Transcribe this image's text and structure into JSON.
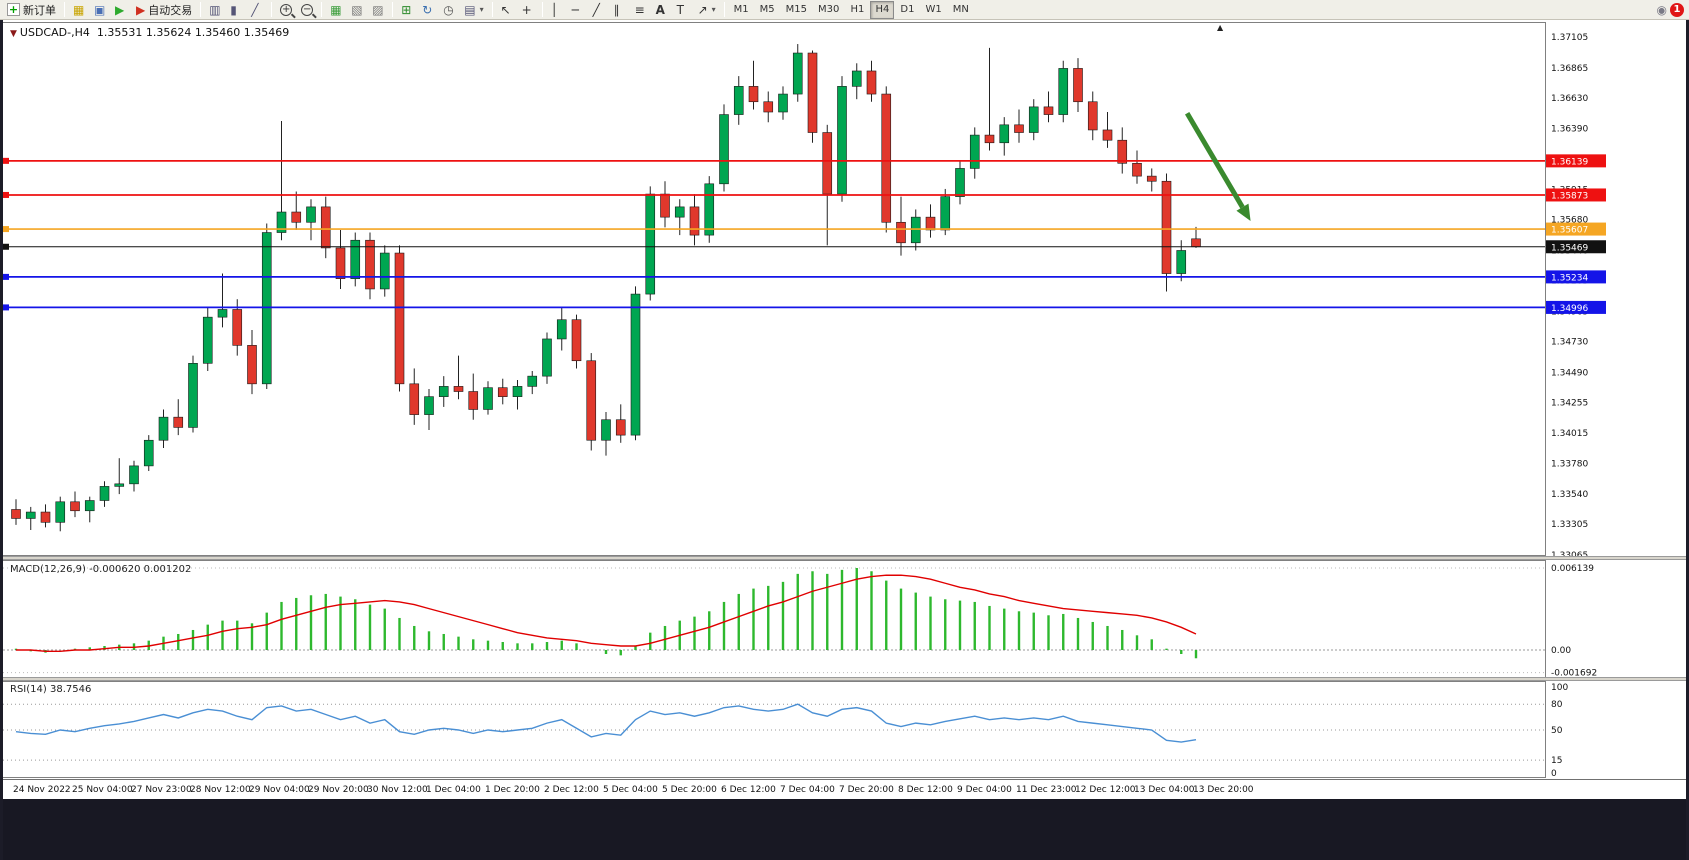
{
  "toolbar": {
    "new_order_label": "新订单",
    "auto_trading_label": "自动交易",
    "timeframes": [
      "M1",
      "M5",
      "M15",
      "M30",
      "H1",
      "H4",
      "D1",
      "W1",
      "MN"
    ],
    "active_timeframe": "H4",
    "notification_badge": "1"
  },
  "header": {
    "symbol": "USDCAD-,H4",
    "ohlc": "1.35531 1.35624 1.35460 1.35469"
  },
  "chart_data": {
    "type": "candlestick",
    "symbol": "USDCAD",
    "timeframe": "H4",
    "quote_open": "1.35531",
    "quote_high": "1.35624",
    "quote_low": "1.35460",
    "quote_close": "1.35469",
    "price_max": 1.37105,
    "price_min": 1.33065,
    "price_axis_labels": [
      "1.37105",
      "1.36865",
      "1.36630",
      "1.36390",
      "1.36155",
      "1.35915",
      "1.35680",
      "1.35440",
      "1.35205",
      "1.34965",
      "1.34730",
      "1.34490",
      "1.34255",
      "1.34015",
      "1.33780",
      "1.33540",
      "1.33305",
      "1.33065"
    ],
    "time_labels": [
      "24 Nov 2022",
      "25 Nov 04:00",
      "27 Nov 23:00",
      "28 Nov 12:00",
      "29 Nov 04:00",
      "29 Nov 20:00",
      "30 Nov 12:00",
      "1 Dec 04:00",
      "1 Dec 20:00",
      "2 Dec 12:00",
      "5 Dec 04:00",
      "5 Dec 20:00",
      "6 Dec 12:00",
      "7 Dec 04:00",
      "7 Dec 20:00",
      "8 Dec 12:00",
      "9 Dec 04:00",
      "11 Dec 23:00",
      "12 Dec 12:00",
      "13 Dec 04:00",
      "13 Dec 20:00"
    ],
    "bull_color": "#00A651",
    "bear_color": "#E0382C",
    "candles": [
      [
        1.3342,
        1.335,
        1.333,
        1.3335
      ],
      [
        1.3335,
        1.3344,
        1.3326,
        1.334
      ],
      [
        1.334,
        1.3346,
        1.3328,
        1.3332
      ],
      [
        1.3332,
        1.3352,
        1.3325,
        1.3348
      ],
      [
        1.3348,
        1.3356,
        1.3336,
        1.3341
      ],
      [
        1.3341,
        1.3352,
        1.3332,
        1.3349
      ],
      [
        1.3349,
        1.3364,
        1.3344,
        1.336
      ],
      [
        1.336,
        1.3382,
        1.3354,
        1.3362
      ],
      [
        1.3362,
        1.338,
        1.3356,
        1.3376
      ],
      [
        1.3376,
        1.34,
        1.3372,
        1.3396
      ],
      [
        1.3396,
        1.342,
        1.339,
        1.3414
      ],
      [
        1.3414,
        1.3428,
        1.34,
        1.3406
      ],
      [
        1.3406,
        1.3462,
        1.3402,
        1.3456
      ],
      [
        1.3456,
        1.35,
        1.345,
        1.3492
      ],
      [
        1.3492,
        1.3526,
        1.3484,
        1.3498
      ],
      [
        1.3498,
        1.3506,
        1.3462,
        1.347
      ],
      [
        1.347,
        1.3482,
        1.3432,
        1.344
      ],
      [
        1.344,
        1.3565,
        1.3436,
        1.3558
      ],
      [
        1.3558,
        1.3645,
        1.3552,
        1.3574
      ],
      [
        1.3574,
        1.359,
        1.356,
        1.3566
      ],
      [
        1.3566,
        1.3584,
        1.3552,
        1.3578
      ],
      [
        1.3578,
        1.3586,
        1.3538,
        1.3546
      ],
      [
        1.3546,
        1.356,
        1.3514,
        1.3522
      ],
      [
        1.3522,
        1.3558,
        1.3516,
        1.3552
      ],
      [
        1.3552,
        1.3558,
        1.3506,
        1.3514
      ],
      [
        1.3514,
        1.3548,
        1.3508,
        1.3542
      ],
      [
        1.3542,
        1.3548,
        1.3434,
        1.344
      ],
      [
        1.344,
        1.3452,
        1.3408,
        1.3416
      ],
      [
        1.3416,
        1.3436,
        1.3404,
        1.343
      ],
      [
        1.343,
        1.3446,
        1.3422,
        1.3438
      ],
      [
        1.3438,
        1.3462,
        1.3428,
        1.3434
      ],
      [
        1.3434,
        1.3448,
        1.3412,
        1.342
      ],
      [
        1.342,
        1.3442,
        1.3416,
        1.3437
      ],
      [
        1.3437,
        1.3444,
        1.3424,
        1.343
      ],
      [
        1.343,
        1.3443,
        1.342,
        1.3438
      ],
      [
        1.3438,
        1.345,
        1.3432,
        1.3446
      ],
      [
        1.3446,
        1.348,
        1.344,
        1.3475
      ],
      [
        1.3475,
        1.35,
        1.3466,
        1.349
      ],
      [
        1.349,
        1.3494,
        1.3452,
        1.3458
      ],
      [
        1.3458,
        1.3464,
        1.3388,
        1.3396
      ],
      [
        1.3396,
        1.3418,
        1.3384,
        1.3412
      ],
      [
        1.3412,
        1.3424,
        1.3394,
        1.34
      ],
      [
        1.34,
        1.3516,
        1.3396,
        1.351
      ],
      [
        1.351,
        1.3594,
        1.3505,
        1.3588
      ],
      [
        1.3588,
        1.3598,
        1.3562,
        1.357
      ],
      [
        1.357,
        1.3584,
        1.3556,
        1.3578
      ],
      [
        1.3578,
        1.3588,
        1.3548,
        1.3556
      ],
      [
        1.3556,
        1.3602,
        1.355,
        1.3596
      ],
      [
        1.3596,
        1.3658,
        1.359,
        1.365
      ],
      [
        1.365,
        1.368,
        1.3642,
        1.3672
      ],
      [
        1.3672,
        1.3692,
        1.3654,
        1.366
      ],
      [
        1.366,
        1.3668,
        1.3644,
        1.3652
      ],
      [
        1.3652,
        1.3672,
        1.3646,
        1.3666
      ],
      [
        1.3666,
        1.3705,
        1.366,
        1.3698
      ],
      [
        1.3698,
        1.37,
        1.3628,
        1.3636
      ],
      [
        1.3636,
        1.3642,
        1.3548,
        1.3588
      ],
      [
        1.3588,
        1.368,
        1.3582,
        1.3672
      ],
      [
        1.3672,
        1.369,
        1.3662,
        1.3684
      ],
      [
        1.3684,
        1.3692,
        1.366,
        1.3666
      ],
      [
        1.3666,
        1.3672,
        1.3558,
        1.3566
      ],
      [
        1.3566,
        1.3586,
        1.354,
        1.355
      ],
      [
        1.355,
        1.3576,
        1.3544,
        1.357
      ],
      [
        1.357,
        1.358,
        1.3554,
        1.356
      ],
      [
        1.356,
        1.3592,
        1.3556,
        1.3586
      ],
      [
        1.3586,
        1.3614,
        1.358,
        1.3608
      ],
      [
        1.3608,
        1.364,
        1.36,
        1.3634
      ],
      [
        1.3634,
        1.3702,
        1.3622,
        1.3628
      ],
      [
        1.3628,
        1.3648,
        1.3618,
        1.3642
      ],
      [
        1.3642,
        1.3654,
        1.3628,
        1.3636
      ],
      [
        1.3636,
        1.3662,
        1.363,
        1.3656
      ],
      [
        1.3656,
        1.3668,
        1.3644,
        1.365
      ],
      [
        1.365,
        1.3692,
        1.3644,
        1.3686
      ],
      [
        1.3686,
        1.3694,
        1.3652,
        1.366
      ],
      [
        1.366,
        1.3668,
        1.363,
        1.3638
      ],
      [
        1.3638,
        1.3652,
        1.3624,
        1.363
      ],
      [
        1.363,
        1.364,
        1.3604,
        1.3612
      ],
      [
        1.3612,
        1.3622,
        1.3596,
        1.3602
      ],
      [
        1.3602,
        1.3608,
        1.359,
        1.3598
      ],
      [
        1.3598,
        1.3604,
        1.3512,
        1.3526
      ],
      [
        1.3526,
        1.3552,
        1.352,
        1.3544
      ],
      [
        1.35531,
        1.35624,
        1.3546,
        1.35469
      ]
    ],
    "hlines": [
      {
        "price": 1.36139,
        "label": "1.36139",
        "color": "#EE1111"
      },
      {
        "price": 1.35873,
        "label": "1.35873",
        "color": "#EE1111"
      },
      {
        "price": 1.35607,
        "label": "1.35607",
        "color": "#F5A623"
      },
      {
        "price": 1.35469,
        "label": "1.35469",
        "color": "#111111"
      },
      {
        "price": 1.35234,
        "label": "1.35234",
        "color": "#1414E8"
      },
      {
        "price": 1.34996,
        "label": "1.34996",
        "color": "#1414E8"
      }
    ],
    "arrow": {
      "from_bar": 79.4,
      "from_price": 1.3651,
      "to_bar": 83.7,
      "to_price": 1.3567,
      "color": "#3A8A2E"
    },
    "macd": {
      "name": "MACD(12,26,9)",
      "values": "-0.000620 0.001202",
      "axis_max": 0.006139,
      "axis_min": -0.001692,
      "axis_max_label": "0.006139",
      "axis_zero_label": "0.00",
      "axis_min_label": "-0.001692",
      "histogram_color": "#2EB82E",
      "signal_color": "#E00000",
      "histogram": [
        0.0001,
        -0.0001,
        -0.0002,
        0,
        0.0001,
        0.0002,
        0.0003,
        0.0004,
        0.0005,
        0.0007,
        0.001,
        0.0012,
        0.0015,
        0.0019,
        0.0022,
        0.0022,
        0.002,
        0.0028,
        0.0036,
        0.0039,
        0.0041,
        0.0042,
        0.004,
        0.0038,
        0.0034,
        0.0031,
        0.0024,
        0.0018,
        0.0014,
        0.0012,
        0.001,
        0.0008,
        0.0007,
        0.0006,
        0.0005,
        0.0005,
        0.0006,
        0.0007,
        0.0005,
        0,
        -0.0003,
        -0.0004,
        0.0003,
        0.0013,
        0.0018,
        0.0022,
        0.0025,
        0.0029,
        0.0036,
        0.0042,
        0.0046,
        0.0048,
        0.0051,
        0.0057,
        0.0059,
        0.0057,
        0.006,
        0.00614,
        0.0059,
        0.0052,
        0.0046,
        0.0043,
        0.004,
        0.0038,
        0.0037,
        0.0036,
        0.0033,
        0.0031,
        0.0029,
        0.0028,
        0.0026,
        0.0027,
        0.0024,
        0.0021,
        0.0018,
        0.0015,
        0.0011,
        0.0008,
        0.0001,
        -0.0003,
        -0.00062
      ],
      "signal": [
        0,
        0,
        -0.0001,
        -0.0001,
        0,
        0,
        0.0001,
        0.0002,
        0.0002,
        0.0003,
        0.0005,
        0.0007,
        0.0009,
        0.0011,
        0.0014,
        0.0016,
        0.0017,
        0.0019,
        0.0023,
        0.0026,
        0.0029,
        0.0032,
        0.0034,
        0.0035,
        0.0036,
        0.0037,
        0.0036,
        0.0034,
        0.0031,
        0.0028,
        0.0025,
        0.0022,
        0.0019,
        0.0016,
        0.0013,
        0.0011,
        0.0009,
        0.0008,
        0.0007,
        0.0005,
        0.0004,
        0.0003,
        0.0003,
        0.0005,
        0.0008,
        0.0011,
        0.0014,
        0.0017,
        0.0021,
        0.0025,
        0.0029,
        0.0033,
        0.0036,
        0.004,
        0.0044,
        0.0047,
        0.005,
        0.0053,
        0.0055,
        0.0056,
        0.0056,
        0.0055,
        0.0053,
        0.005,
        0.0047,
        0.0045,
        0.0042,
        0.004,
        0.0037,
        0.0035,
        0.0033,
        0.0031,
        0.003,
        0.0029,
        0.0028,
        0.0027,
        0.0026,
        0.0024,
        0.0021,
        0.0017,
        0.0012
      ]
    },
    "rsi": {
      "name": "RSI(14)",
      "value": "38.7546",
      "line_color": "#4A8FD4",
      "levels": [
        100,
        80,
        50,
        15,
        0
      ],
      "level_labels": [
        "100",
        "80",
        "50",
        "15",
        "0"
      ],
      "values": [
        48,
        46,
        45,
        50,
        48,
        52,
        55,
        57,
        60,
        64,
        68,
        64,
        70,
        74,
        72,
        66,
        62,
        76,
        78,
        72,
        74,
        68,
        62,
        66,
        58,
        62,
        48,
        45,
        50,
        52,
        50,
        46,
        50,
        48,
        50,
        52,
        58,
        62,
        52,
        42,
        46,
        44,
        62,
        72,
        68,
        70,
        66,
        70,
        76,
        78,
        74,
        72,
        74,
        80,
        70,
        66,
        74,
        76,
        72,
        58,
        54,
        58,
        56,
        60,
        63,
        66,
        62,
        64,
        62,
        64,
        62,
        66,
        60,
        58,
        56,
        54,
        52,
        50,
        38,
        36,
        38.75
      ]
    }
  }
}
